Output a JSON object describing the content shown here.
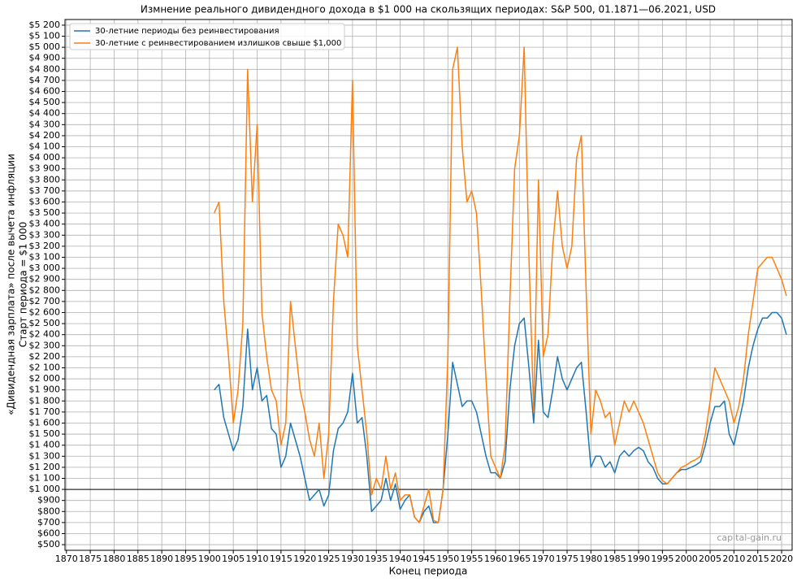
{
  "chart_data": {
    "type": "line",
    "title": "Измнение реального дивидендного дохода в $1 000 на скользящих периодах: S&P 500, 01.1871—06.2021, USD",
    "xlabel": "Конец периода",
    "ylabel": [
      "«Дивидендная зарплата» после вычета инфляции",
      "Старт периода = $1 000"
    ],
    "watermark": "capital-gain.ru",
    "grid": true,
    "legend": "upper-left",
    "reference_line": 1000,
    "xlim": [
      1869.7,
      2022.2
    ],
    "xticks": [
      1870,
      1875,
      1880,
      1885,
      1890,
      1895,
      1900,
      1905,
      1910,
      1915,
      1920,
      1925,
      1930,
      1935,
      1940,
      1945,
      1950,
      1955,
      1960,
      1965,
      1970,
      1975,
      1980,
      1985,
      1990,
      1995,
      2000,
      2005,
      2010,
      2015,
      2020
    ],
    "ylim": [
      449,
      5251
    ],
    "yticks": [
      {
        "value": 500,
        "label": "$500"
      },
      {
        "value": 600,
        "label": "$600"
      },
      {
        "value": 700,
        "label": "$700"
      },
      {
        "value": 800,
        "label": "$800"
      },
      {
        "value": 900,
        "label": "$900"
      },
      {
        "value": 1000,
        "label": "$1 000"
      },
      {
        "value": 1100,
        "label": "$1 100"
      },
      {
        "value": 1200,
        "label": "$1 200"
      },
      {
        "value": 1300,
        "label": "$1 300"
      },
      {
        "value": 1400,
        "label": "$1 400"
      },
      {
        "value": 1500,
        "label": "$1 500"
      },
      {
        "value": 1600,
        "label": "$1 600"
      },
      {
        "value": 1700,
        "label": "$1 700"
      },
      {
        "value": 1800,
        "label": "$1 800"
      },
      {
        "value": 1900,
        "label": "$1 900"
      },
      {
        "value": 2000,
        "label": "$2 000"
      },
      {
        "value": 2100,
        "label": "$2 100"
      },
      {
        "value": 2200,
        "label": "$2 200"
      },
      {
        "value": 2300,
        "label": "$2 300"
      },
      {
        "value": 2400,
        "label": "$2 400"
      },
      {
        "value": 2500,
        "label": "$2 500"
      },
      {
        "value": 2600,
        "label": "$2 600"
      },
      {
        "value": 2700,
        "label": "$2 700"
      },
      {
        "value": 2800,
        "label": "$2 800"
      },
      {
        "value": 2900,
        "label": "$2 900"
      },
      {
        "value": 3000,
        "label": "$3 000"
      },
      {
        "value": 3100,
        "label": "$3 100"
      },
      {
        "value": 3200,
        "label": "$3 200"
      },
      {
        "value": 3300,
        "label": "$3 300"
      },
      {
        "value": 3400,
        "label": "$3 400"
      },
      {
        "value": 3500,
        "label": "$3 500"
      },
      {
        "value": 3600,
        "label": "$3 600"
      },
      {
        "value": 3700,
        "label": "$3 700"
      },
      {
        "value": 3800,
        "label": "$3 800"
      },
      {
        "value": 3900,
        "label": "$3 900"
      },
      {
        "value": 4000,
        "label": "$4 000"
      },
      {
        "value": 4100,
        "label": "$4 100"
      },
      {
        "value": 4200,
        "label": "$4 200"
      },
      {
        "value": 4300,
        "label": "$4 300"
      },
      {
        "value": 4400,
        "label": "$4 400"
      },
      {
        "value": 4500,
        "label": "$4 500"
      },
      {
        "value": 4600,
        "label": "$4 600"
      },
      {
        "value": 4700,
        "label": "$4 700"
      },
      {
        "value": 4800,
        "label": "$4 800"
      },
      {
        "value": 4900,
        "label": "$4 900"
      },
      {
        "value": 5000,
        "label": "$5 000"
      },
      {
        "value": 5100,
        "label": "$5 100"
      },
      {
        "value": 5200,
        "label": "$5 200"
      }
    ],
    "x": [
      1901,
      1902,
      1903,
      1904,
      1905,
      1906,
      1907,
      1908,
      1909,
      1910,
      1911,
      1912,
      1913,
      1914,
      1915,
      1916,
      1917,
      1918,
      1919,
      1920,
      1921,
      1922,
      1923,
      1924,
      1925,
      1926,
      1927,
      1928,
      1929,
      1930,
      1931,
      1932,
      1933,
      1934,
      1935,
      1936,
      1937,
      1938,
      1939,
      1940,
      1941,
      1942,
      1943,
      1944,
      1945,
      1946,
      1947,
      1948,
      1949,
      1950,
      1951,
      1952,
      1953,
      1954,
      1955,
      1956,
      1957,
      1958,
      1959,
      1960,
      1961,
      1962,
      1963,
      1964,
      1965,
      1966,
      1967,
      1968,
      1969,
      1970,
      1971,
      1972,
      1973,
      1974,
      1975,
      1976,
      1977,
      1978,
      1979,
      1980,
      1981,
      1982,
      1983,
      1984,
      1985,
      1986,
      1987,
      1988,
      1989,
      1990,
      1991,
      1992,
      1993,
      1994,
      1995,
      1996,
      1997,
      1998,
      1999,
      2000,
      2001,
      2002,
      2003,
      2004,
      2005,
      2006,
      2007,
      2008,
      2009,
      2010,
      2011,
      2012,
      2013,
      2014,
      2015,
      2016,
      2017,
      2018,
      2019,
      2020,
      2021
    ],
    "series": [
      {
        "name": "30-летние периоды без реинвестирования",
        "color": "#1f77b4",
        "values": [
          1900,
          1950,
          1650,
          1500,
          1350,
          1450,
          1750,
          2450,
          1900,
          2100,
          1800,
          1850,
          1550,
          1500,
          1200,
          1300,
          1600,
          1450,
          1300,
          1100,
          900,
          950,
          1000,
          850,
          950,
          1350,
          1550,
          1600,
          1700,
          2050,
          1600,
          1650,
          1300,
          800,
          850,
          900,
          1100,
          900,
          1050,
          820,
          900,
          950,
          750,
          700,
          800,
          850,
          700,
          700,
          1000,
          1500,
          2150,
          1950,
          1750,
          1800,
          1800,
          1700,
          1500,
          1300,
          1150,
          1150,
          1100,
          1250,
          1900,
          2300,
          2500,
          2550,
          2100,
          1600,
          2350,
          1700,
          1650,
          1900,
          2200,
          2000,
          1900,
          2000,
          2100,
          2150,
          1700,
          1200,
          1300,
          1300,
          1200,
          1250,
          1150,
          1300,
          1350,
          1300,
          1350,
          1380,
          1350,
          1250,
          1200,
          1100,
          1050,
          1050,
          1100,
          1150,
          1180,
          1180,
          1200,
          1220,
          1250,
          1400,
          1600,
          1750,
          1750,
          1800,
          1500,
          1400,
          1600,
          1800,
          2100,
          2300,
          2450,
          2550,
          2550,
          2600,
          2600,
          2550,
          2400
        ]
      },
      {
        "name": "30-летние с реинвестированием излишков свыше $1,000",
        "color": "#ff7f0e",
        "values": [
          3500,
          3600,
          2700,
          2200,
          1600,
          1900,
          2500,
          4800,
          3600,
          4300,
          2600,
          2200,
          1900,
          1800,
          1400,
          1600,
          2700,
          2300,
          1900,
          1700,
          1450,
          1300,
          1600,
          1100,
          1500,
          2700,
          3400,
          3300,
          3100,
          4700,
          2300,
          1900,
          1500,
          950,
          1100,
          1000,
          1300,
          1000,
          1150,
          900,
          950,
          950,
          750,
          700,
          850,
          1000,
          720,
          700,
          1000,
          2200,
          4800,
          5000,
          4100,
          3600,
          3700,
          3500,
          2800,
          2000,
          1300,
          1200,
          1100,
          1400,
          2700,
          3900,
          4200,
          5000,
          3100,
          1700,
          3800,
          2200,
          2400,
          3200,
          3700,
          3200,
          3000,
          3200,
          4000,
          4200,
          2800,
          1500,
          1900,
          1800,
          1650,
          1700,
          1400,
          1600,
          1800,
          1700,
          1800,
          1700,
          1600,
          1450,
          1300,
          1150,
          1080,
          1050,
          1100,
          1150,
          1200,
          1220,
          1250,
          1270,
          1300,
          1500,
          1800,
          2100,
          2000,
          1900,
          1800,
          1600,
          1750,
          2000,
          2400,
          2700,
          3000,
          3050,
          3100,
          3100,
          3000,
          2900,
          2750
        ]
      }
    ]
  }
}
